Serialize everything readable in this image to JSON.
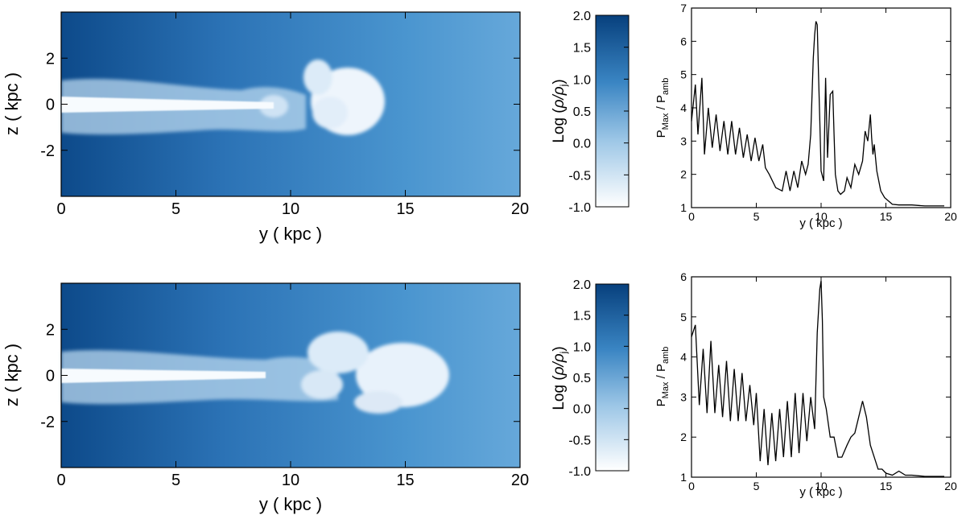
{
  "colors": {
    "density_dark": "#0b4a8b",
    "density_mid": "#3f8dc9",
    "density_light": "#f4f8fd",
    "profile_line": "#000000",
    "axis": "#000000"
  },
  "colorbar": {
    "label_prefix": "Log (",
    "label_suffix": ")",
    "ticks": [
      "2.0",
      "1.5",
      "1.0",
      "0.5",
      "0.0",
      "-0.5",
      "-1.0"
    ],
    "range": [
      -1.0,
      2.0
    ]
  },
  "chart_data": [
    {
      "type": "heatmap",
      "panel": "top",
      "xlabel": "y ( kpc )",
      "ylabel": "z ( kpc )",
      "xlim": [
        0,
        20
      ],
      "ylim": [
        -4,
        4
      ],
      "xticks": [
        0,
        5,
        10,
        15,
        20
      ],
      "yticks": [
        2,
        0,
        -2
      ],
      "jet_head_y_kpc": 14,
      "colormap_range": [
        -1.0,
        2.0
      ]
    },
    {
      "type": "line",
      "panel": "top",
      "xlabel": "y ( kpc )",
      "ylabel": "P_Max / P_amb",
      "xlim": [
        0,
        20
      ],
      "ylim": [
        1,
        7
      ],
      "xticks": [
        0,
        5,
        10,
        15,
        20
      ],
      "yticks": [
        1,
        2,
        3,
        4,
        5,
        6,
        7
      ],
      "series": [
        {
          "x": [
            0.0,
            0.3,
            0.5,
            0.8,
            1.0,
            1.3,
            1.6,
            1.9,
            2.2,
            2.5,
            2.8,
            3.1,
            3.4,
            3.7,
            4.0,
            4.3,
            4.6,
            4.9,
            5.2,
            5.5,
            5.7,
            6.0,
            6.5,
            7.0,
            7.3,
            7.6,
            7.9,
            8.2,
            8.5,
            8.8,
            9.0,
            9.2,
            9.4,
            9.5,
            9.6,
            9.7,
            9.8,
            9.9,
            10.0,
            10.2,
            10.35,
            10.5,
            10.7,
            10.9,
            11.0,
            11.1,
            11.3,
            11.5,
            11.8,
            12.0,
            12.3,
            12.6,
            12.9,
            13.2,
            13.4,
            13.6,
            13.8,
            13.9,
            14.0,
            14.1,
            14.3,
            14.6,
            14.9,
            15.2,
            15.5,
            16.0,
            17.0,
            18.0,
            19.0,
            19.5
          ],
          "values": [
            3.6,
            4.7,
            3.2,
            4.9,
            2.6,
            4.0,
            2.8,
            3.8,
            2.7,
            3.6,
            2.6,
            3.6,
            2.6,
            3.4,
            2.5,
            3.2,
            2.4,
            3.1,
            2.4,
            2.9,
            2.2,
            2.0,
            1.6,
            1.5,
            2.1,
            1.5,
            2.1,
            1.6,
            2.4,
            2.0,
            2.3,
            3.2,
            5.5,
            6.2,
            6.6,
            6.5,
            5.0,
            3.6,
            2.1,
            1.8,
            4.9,
            2.5,
            4.4,
            4.5,
            3.2,
            2.0,
            1.5,
            1.4,
            1.5,
            1.9,
            1.6,
            2.3,
            2.0,
            2.4,
            3.3,
            3.0,
            3.8,
            3.1,
            2.6,
            2.9,
            2.1,
            1.5,
            1.3,
            1.2,
            1.1,
            1.08,
            1.08,
            1.05,
            1.05,
            1.05
          ]
        }
      ]
    },
    {
      "type": "heatmap",
      "panel": "bottom",
      "xlabel": "y ( kpc )",
      "ylabel": "z ( kpc )",
      "xlim": [
        0,
        20
      ],
      "ylim": [
        -4,
        4
      ],
      "xticks": [
        0,
        5,
        10,
        15,
        20
      ],
      "yticks": [
        2,
        0,
        -2
      ],
      "jet_head_y_kpc": 16.7,
      "colormap_range": [
        -1.0,
        2.0
      ]
    },
    {
      "type": "line",
      "panel": "bottom",
      "xlabel": "y ( kpc )",
      "ylabel": "P_Max / P_amb",
      "xlim": [
        0,
        20
      ],
      "ylim": [
        1,
        6
      ],
      "xticks": [
        0,
        5,
        10,
        15,
        20
      ],
      "yticks": [
        1,
        2,
        3,
        4,
        5,
        6
      ],
      "series": [
        {
          "x": [
            0.0,
            0.3,
            0.6,
            0.9,
            1.2,
            1.5,
            1.8,
            2.1,
            2.4,
            2.7,
            3.0,
            3.3,
            3.6,
            3.9,
            4.2,
            4.5,
            4.8,
            5.0,
            5.3,
            5.6,
            5.9,
            6.2,
            6.5,
            6.8,
            7.1,
            7.4,
            7.7,
            8.0,
            8.3,
            8.6,
            8.9,
            9.2,
            9.5,
            9.7,
            9.9,
            10.0,
            10.1,
            10.2,
            10.4,
            10.7,
            11.0,
            11.3,
            11.6,
            12.0,
            12.3,
            12.6,
            12.9,
            13.2,
            13.5,
            13.8,
            14.1,
            14.4,
            14.7,
            15.0,
            15.5,
            16.0,
            16.5,
            17.0,
            18.0,
            19.0,
            19.5
          ],
          "values": [
            4.5,
            4.8,
            2.8,
            4.2,
            2.6,
            4.4,
            2.6,
            3.8,
            2.5,
            3.9,
            2.4,
            3.7,
            2.4,
            3.6,
            2.4,
            3.3,
            2.3,
            3.1,
            1.4,
            2.7,
            1.3,
            2.6,
            1.4,
            2.7,
            1.5,
            2.9,
            1.5,
            3.1,
            1.6,
            3.1,
            1.9,
            3.0,
            2.2,
            4.6,
            5.7,
            5.9,
            4.9,
            3.0,
            2.7,
            2.0,
            2.0,
            1.5,
            1.5,
            1.8,
            2.0,
            2.1,
            2.5,
            2.9,
            2.5,
            1.8,
            1.5,
            1.2,
            1.2,
            1.1,
            1.05,
            1.15,
            1.05,
            1.05,
            1.02,
            1.02,
            1.02
          ]
        }
      ]
    }
  ]
}
